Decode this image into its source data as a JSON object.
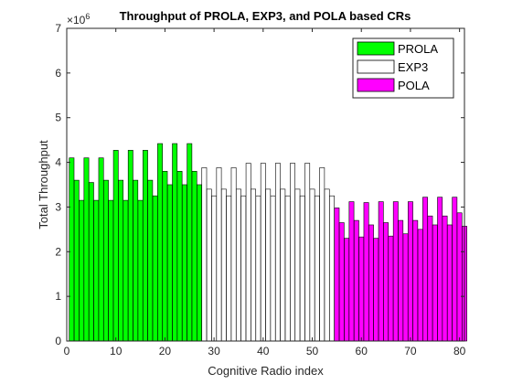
{
  "chart_data": {
    "type": "bar",
    "title": "Throughput of PROLA, EXP3, and POLA based CRs",
    "xlabel": "Cognitive Radio index",
    "ylabel": "Total Throughput",
    "y_exponent_label": "×10",
    "y_exponent_power": "6",
    "xlim": [
      0,
      81
    ],
    "ylim": [
      0,
      7
    ],
    "xticks": [
      0,
      10,
      20,
      30,
      40,
      50,
      60,
      70,
      80
    ],
    "yticks": [
      0,
      1,
      2,
      3,
      4,
      5,
      6,
      7
    ],
    "grid": false,
    "legend_position": "top-right",
    "series": [
      {
        "name": "PROLA",
        "color": "#00ff00",
        "x": [
          1,
          2,
          3,
          4,
          5,
          6,
          7,
          8,
          9,
          10,
          11,
          12,
          13,
          14,
          15,
          16,
          17,
          18,
          19,
          20,
          21,
          22,
          23,
          24,
          25,
          26,
          27
        ],
        "values": [
          4.1,
          3.6,
          3.15,
          4.1,
          3.55,
          3.15,
          4.1,
          3.6,
          3.15,
          4.27,
          3.6,
          3.15,
          4.27,
          3.6,
          3.15,
          4.27,
          3.6,
          3.25,
          4.42,
          3.8,
          3.5,
          4.42,
          3.8,
          3.5,
          4.42,
          3.8,
          3.5
        ]
      },
      {
        "name": "EXP3",
        "color": "#ffffff",
        "x": [
          28,
          29,
          30,
          31,
          32,
          33,
          34,
          35,
          36,
          37,
          38,
          39,
          40,
          41,
          42,
          43,
          44,
          45,
          46,
          47,
          48,
          49,
          50,
          51,
          52,
          53,
          54
        ],
        "values": [
          3.88,
          3.4,
          3.25,
          3.88,
          3.4,
          3.25,
          3.88,
          3.4,
          3.25,
          3.98,
          3.4,
          3.25,
          3.98,
          3.4,
          3.25,
          3.98,
          3.4,
          3.25,
          3.98,
          3.4,
          3.25,
          3.98,
          3.4,
          3.25,
          3.88,
          3.4,
          3.25
        ]
      },
      {
        "name": "POLA",
        "color": "#ff00ff",
        "x": [
          55,
          56,
          57,
          58,
          59,
          60,
          61,
          62,
          63,
          64,
          65,
          66,
          67,
          68,
          69,
          70,
          70.99,
          72,
          73,
          74,
          75,
          76,
          77,
          78,
          79,
          80,
          81
        ],
        "values": [
          2.98,
          2.65,
          2.3,
          3.12,
          2.7,
          2.33,
          3.1,
          2.6,
          2.3,
          3.12,
          2.65,
          2.35,
          3.12,
          2.7,
          2.4,
          3.12,
          2.7,
          2.5,
          3.22,
          2.8,
          2.6,
          3.22,
          2.8,
          2.6,
          3.22,
          2.87,
          2.57
        ]
      }
    ]
  }
}
